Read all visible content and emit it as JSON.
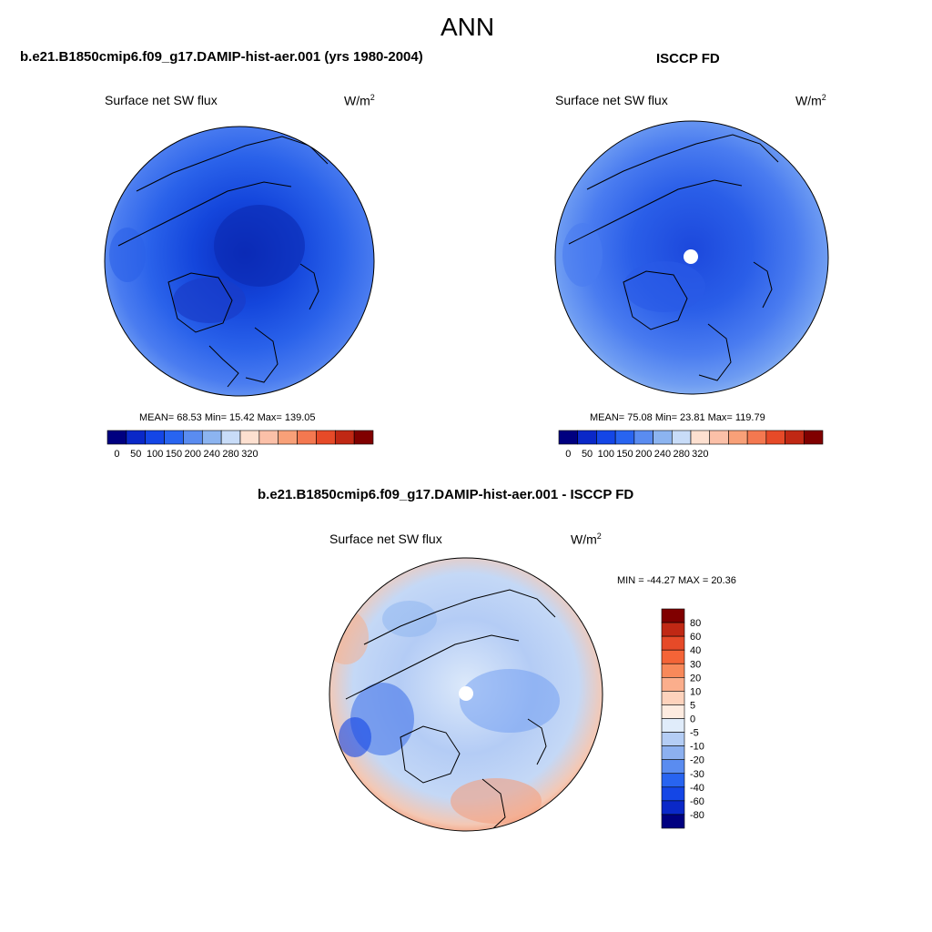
{
  "figure": {
    "title": "ANN",
    "panels": [
      {
        "id": "model",
        "header": "b.e21.B1850cmip6.f09_g17.DAMIP-hist-aer.001 (yrs 1980-2004)",
        "variable": "Surface net SW flux",
        "units": "W/m",
        "units_sup": "2",
        "stats": {
          "mean": "68.53",
          "min": "15.42",
          "max": "139.05"
        },
        "stats_text": "MEAN=  68.53  Min=  15.42  Max= 139.05"
      },
      {
        "id": "obs",
        "header": "ISCCP FD",
        "variable": "Surface net SW flux",
        "units": "W/m",
        "units_sup": "2",
        "stats": {
          "mean": "75.08",
          "min": "23.81",
          "max": "119.79"
        },
        "stats_text": "MEAN=  75.08  Min=  23.81  Max= 119.79"
      },
      {
        "id": "diff",
        "header": "b.e21.B1850cmip6.f09_g17.DAMIP-hist-aer.001 - ISCCP FD",
        "variable": "Surface net SW flux",
        "units": "W/m",
        "units_sup": "2",
        "stats": {
          "min": "-44.27",
          "max": "20.36"
        },
        "stats_text": "MIN = -44.27 MAX =  20.36"
      }
    ],
    "abs_colorbar": {
      "tick_labels": [
        "0",
        "50",
        "100",
        "150",
        "200",
        "240",
        "280",
        "320"
      ],
      "colors": [
        "#000080",
        "#0a28c8",
        "#1446e6",
        "#2864f0",
        "#5a8cf0",
        "#8cb4f0",
        "#c8dcf8",
        "#fde0d0",
        "#fbc0a8",
        "#f8a078",
        "#f47850",
        "#e64a28",
        "#c02814",
        "#800000"
      ]
    },
    "diff_colorbar": {
      "tick_labels": [
        "80",
        "60",
        "40",
        "30",
        "20",
        "10",
        "5",
        "0",
        "-5",
        "-10",
        "-20",
        "-30",
        "-40",
        "-60",
        "-80"
      ],
      "colors": [
        "#800000",
        "#c02814",
        "#e64a28",
        "#f46437",
        "#f8895a",
        "#fbae8c",
        "#fdd2bc",
        "#fdebe0",
        "#e0ecfa",
        "#b4cdf5",
        "#8cb0f0",
        "#5a8cf0",
        "#2864f0",
        "#1446e6",
        "#0a28c8",
        "#000080"
      ]
    }
  }
}
